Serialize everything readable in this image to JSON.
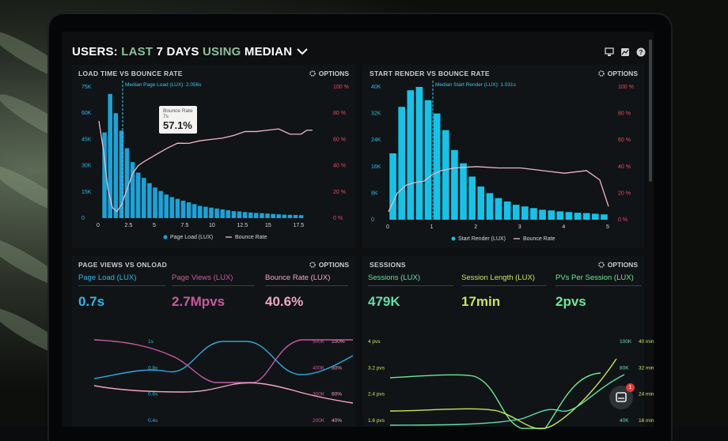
{
  "header": {
    "w1": "USERS:",
    "w2": "LAST",
    "w3": "7 DAYS",
    "w4": "USING",
    "w5": "MEDIAN"
  },
  "panels": {
    "load": {
      "title": "LOAD TIME VS BOUNCE RATE",
      "options": "OPTIONS",
      "median_label": "Median Page Load (LUX): 2.056s",
      "left_ticks": [
        "75K",
        "60K",
        "45K",
        "30K",
        "15K",
        "0"
      ],
      "right_ticks": [
        "100 %",
        "80 %",
        "60 %",
        "40 %",
        "20 %",
        "0 %"
      ],
      "x_ticks": [
        "0",
        "2.5",
        "5",
        "7.5",
        "10",
        "12.5",
        "15",
        "17.5"
      ],
      "legend": [
        "Page Load (LUX)",
        "Bounce Rate"
      ],
      "tooltip_label": "Bounce Rate",
      "tooltip_sub": "7s",
      "tooltip_value": "57.1%"
    },
    "start": {
      "title": "START RENDER VS BOUNCE RATE",
      "options": "OPTIONS",
      "median_label": "Median Start Render (LUX): 1.031s",
      "left_ticks": [
        "40K",
        "32K",
        "24K",
        "16K",
        "8K",
        "0"
      ],
      "right_ticks": [
        "100 %",
        "80 %",
        "60 %",
        "40 %",
        "20 %",
        "0 %"
      ],
      "x_ticks": [
        "0",
        "1",
        "2",
        "3",
        "4",
        "5"
      ],
      "legend": [
        "Start Render (LUX)",
        "Bounce Rate"
      ]
    },
    "pageviews": {
      "title": "PAGE VIEWS VS ONLOAD",
      "options": "OPTIONS",
      "kpis": [
        {
          "label": "Page Load (LUX)",
          "value": "0.7s",
          "color": "#2fb7e6"
        },
        {
          "label": "Page Views (LUX)",
          "value": "2.7Mpvs",
          "color": "#c65aa0"
        },
        {
          "label": "Bounce Rate (LUX)",
          "value": "40.6%",
          "color": "#f1a6c4"
        }
      ],
      "left_ticks": [
        "1s",
        "0.8s",
        "0.6s",
        "0.4s"
      ],
      "right_ticks_a": [
        "500K",
        "400K",
        "300K",
        "200K"
      ],
      "right_ticks_b": [
        "100%",
        "80%",
        "60%",
        "40%"
      ]
    },
    "sessions": {
      "title": "SESSIONS",
      "options": "OPTIONS",
      "kpis": [
        {
          "label": "Sessions (LUX)",
          "value": "479K",
          "color": "#5fe0a8"
        },
        {
          "label": "Session Length (LUX)",
          "value": "17min",
          "color": "#c8e65a"
        },
        {
          "label": "PVs Per Session (LUX)",
          "value": "2pvs",
          "color": "#6de89a"
        }
      ],
      "left_ticks": [
        "4 pvs",
        "3.2 pvs",
        "2.4 pvs",
        "1.6 pvs"
      ],
      "right_ticks_a": [
        "100K",
        "80K",
        "60K",
        "40K"
      ],
      "right_ticks_b": [
        "40 min",
        "32 min",
        "24 min",
        "16 min"
      ]
    }
  },
  "chat_badge": "1",
  "chart_data": [
    {
      "type": "bar",
      "title": "LOAD TIME VS BOUNCE RATE",
      "x": [
        0.5,
        1,
        1.5,
        2,
        2.5,
        3,
        3.5,
        4,
        4.5,
        5,
        5.5,
        6,
        6.5,
        7,
        7.5,
        8,
        8.5,
        9,
        9.5,
        10,
        10.5,
        11,
        11.5,
        12,
        12.5,
        13,
        13.5,
        14,
        14.5,
        15,
        15.5,
        16,
        16.5,
        17,
        17.5,
        18
      ],
      "series": [
        {
          "name": "Page Load (LUX)",
          "values": [
            49000,
            71000,
            60000,
            50000,
            40000,
            32000,
            26000,
            23000,
            20000,
            17500,
            15500,
            13500,
            12000,
            11000,
            10000,
            9000,
            8000,
            7000,
            6500,
            6000,
            5500,
            5000,
            4500,
            4000,
            3800,
            3500,
            3200,
            3000,
            2800,
            2600,
            2400,
            2200,
            2000,
            1900,
            1800,
            1700
          ]
        },
        {
          "name": "Bounce Rate",
          "x": [
            0,
            0.4,
            0.8,
            1.2,
            1.6,
            2,
            2.5,
            3,
            3.5,
            4,
            5,
            6,
            7,
            8,
            9,
            10,
            11,
            12,
            13,
            14,
            15,
            16,
            17,
            18,
            18.5,
            19
          ],
          "values": [
            74,
            52,
            22,
            8,
            5,
            10,
            22,
            34,
            40,
            43,
            48,
            53,
            57.1,
            57,
            59,
            60,
            61,
            63,
            66,
            66,
            67,
            68,
            64,
            64,
            67,
            67
          ]
        }
      ],
      "ylim": [
        0,
        75000
      ],
      "y2lim": [
        0,
        100
      ],
      "xlim": [
        0,
        20
      ]
    },
    {
      "type": "bar",
      "title": "START RENDER VS BOUNCE RATE",
      "x": [
        0.1,
        0.3,
        0.5,
        0.7,
        0.9,
        1.1,
        1.3,
        1.5,
        1.7,
        1.9,
        2.1,
        2.3,
        2.5,
        2.7,
        2.9,
        3.1,
        3.3,
        3.5,
        3.7,
        3.9,
        4.1,
        4.3,
        4.5,
        4.7,
        4.9
      ],
      "series": [
        {
          "name": "Start Render (LUX)",
          "values": [
            20000,
            34000,
            39000,
            40000,
            36000,
            32000,
            27000,
            21000,
            17000,
            13000,
            10000,
            8000,
            6500,
            5500,
            4500,
            4000,
            3500,
            3000,
            2800,
            2500,
            2300,
            2100,
            2000,
            1800,
            1600
          ]
        },
        {
          "name": "Bounce Rate",
          "x": [
            0,
            0.2,
            0.4,
            0.6,
            0.8,
            1,
            1.2,
            1.5,
            2,
            2.5,
            3,
            3.5,
            4,
            4.5,
            4.8,
            5
          ],
          "values": [
            6,
            20,
            26,
            28,
            29,
            34,
            37,
            39,
            40,
            39,
            39,
            37,
            35,
            37,
            30,
            10
          ]
        }
      ],
      "ylim": [
        0,
        40000
      ],
      "y2lim": [
        0,
        100
      ],
      "xlim": [
        0,
        5
      ]
    }
  ]
}
